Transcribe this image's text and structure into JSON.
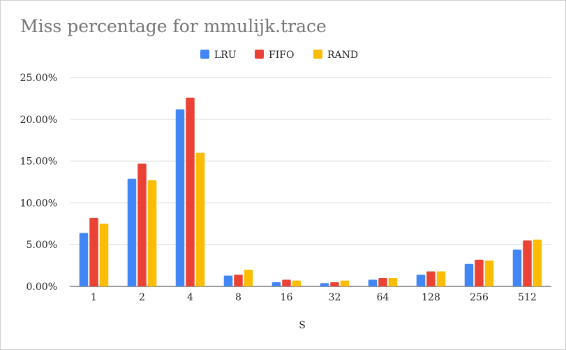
{
  "chart_data": {
    "type": "bar",
    "title": "Miss percentage for mmulijk.trace",
    "xlabel": "S",
    "ylabel": "",
    "categories": [
      "1",
      "2",
      "4",
      "8",
      "16",
      "32",
      "64",
      "128",
      "256",
      "512"
    ],
    "ylim": [
      0,
      25
    ],
    "yticks": [
      "0.00%",
      "5.00%",
      "10.00%",
      "15.00%",
      "20.00%",
      "25.00%"
    ],
    "ytick_values": [
      0,
      5,
      10,
      15,
      20,
      25
    ],
    "grid": true,
    "legend_position": "top",
    "series": [
      {
        "name": "LRU",
        "color": "#4285f4",
        "values": [
          6.4,
          12.9,
          21.2,
          1.3,
          0.5,
          0.4,
          0.8,
          1.4,
          2.7,
          4.4
        ]
      },
      {
        "name": "FIFO",
        "color": "#ea4335",
        "values": [
          8.2,
          14.7,
          22.6,
          1.4,
          0.8,
          0.5,
          1.0,
          1.8,
          3.2,
          5.5
        ]
      },
      {
        "name": "RAND",
        "color": "#fbbc04",
        "values": [
          7.5,
          12.7,
          16.0,
          2.0,
          0.7,
          0.7,
          1.0,
          1.8,
          3.1,
          5.6
        ]
      }
    ]
  }
}
